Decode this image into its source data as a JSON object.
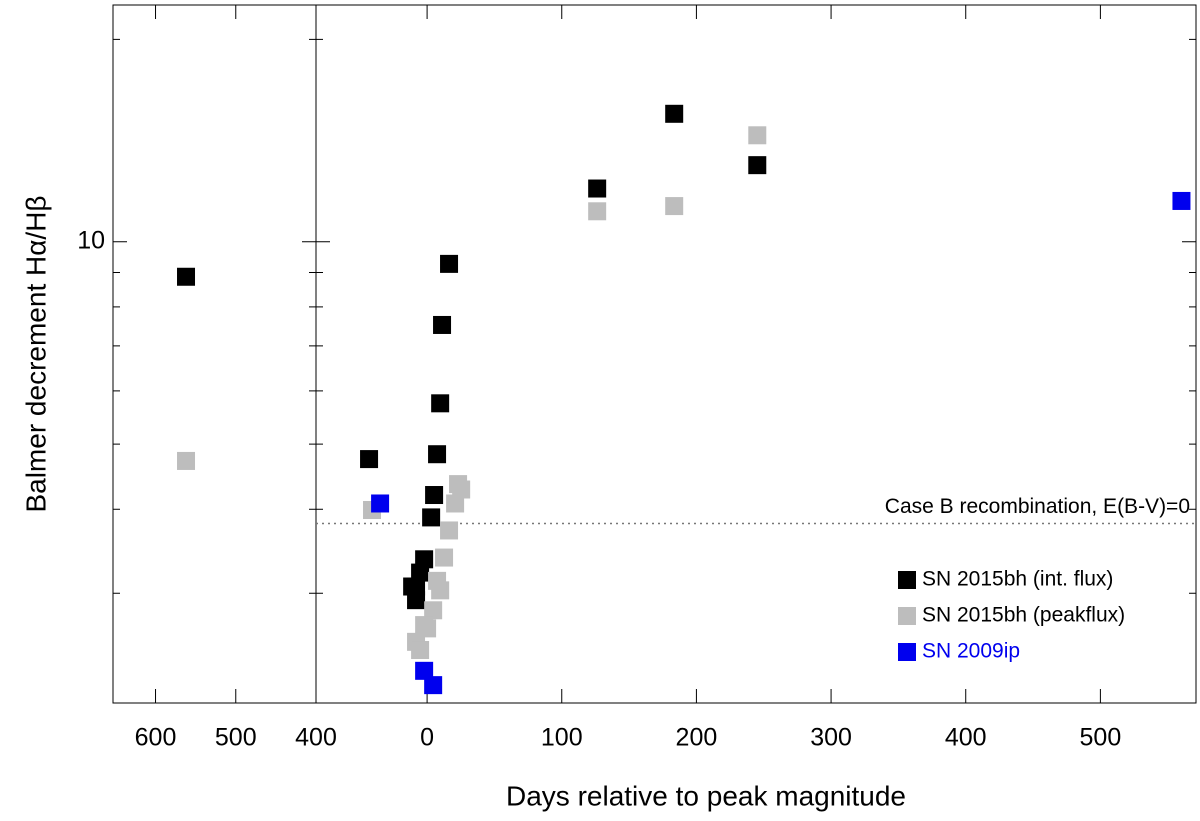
{
  "chart_data": [
    {
      "type": "scatter",
      "y_label": "Balmer decrement Hα/Hβ",
      "log_y": true,
      "xlim": [
        653,
        400
      ],
      "xticks": [
        600,
        500,
        400
      ],
      "ylim": [
        2.06,
        22.5
      ],
      "yticks": [
        10
      ],
      "yminor_ticks": [
        3,
        4,
        5,
        6,
        7,
        8,
        9,
        20
      ],
      "series": [
        {
          "color": "#000000",
          "x": [
            562
          ],
          "values": [
            8.87
          ]
        },
        {
          "color": "#bdbdbd",
          "x": [
            562
          ],
          "values": [
            4.72
          ]
        }
      ]
    },
    {
      "type": "scatter",
      "x_label": "Days relative to peak magnitude",
      "log_y": true,
      "xlim": [
        -82.5,
        571
      ],
      "xticks": [
        0,
        100,
        200,
        300,
        400,
        500
      ],
      "ylim": [
        2.06,
        22.5
      ],
      "hline": {
        "value": 3.81,
        "label": "Case B recombination, E(B-V)=0"
      },
      "legend": "lower right",
      "series": [
        {
          "name": "SN 2015bh (int. flux)",
          "color": "#000000",
          "x": [
            -43.1,
            3.0,
            5.2,
            7.4,
            9.7,
            11.1,
            16.3,
            -2.2,
            -5.2,
            -8.2,
            -11.1,
            -8.2,
            126.3,
            183.5,
            245.2
          ],
          "values": [
            4.75,
            3.89,
            4.2,
            4.83,
            5.75,
            7.52,
            9.27,
            3.37,
            3.22,
            3.07,
            3.07,
            2.93,
            12.0,
            15.5,
            13.0
          ]
        },
        {
          "name": "SN 2015bh (peakflux)",
          "color": "#bdbdbd",
          "x": [
            -40.9,
            16.3,
            20.8,
            23.0,
            25.3,
            12.6,
            9.7,
            7.4,
            4.5,
            0,
            -2.2,
            -8.2,
            -5.2,
            126.3,
            183.5,
            245.2
          ],
          "values": [
            3.99,
            3.72,
            4.08,
            4.36,
            4.28,
            3.39,
            3.03,
            3.13,
            2.83,
            2.66,
            2.69,
            2.54,
            2.47,
            11.1,
            11.3,
            14.4
          ]
        },
        {
          "name": "SN 2009ip",
          "color": "#0000ee",
          "x": [
            -34.9,
            -2.2,
            4.5,
            560.2
          ],
          "values": [
            4.08,
            2.3,
            2.19,
            11.5
          ]
        }
      ]
    }
  ]
}
